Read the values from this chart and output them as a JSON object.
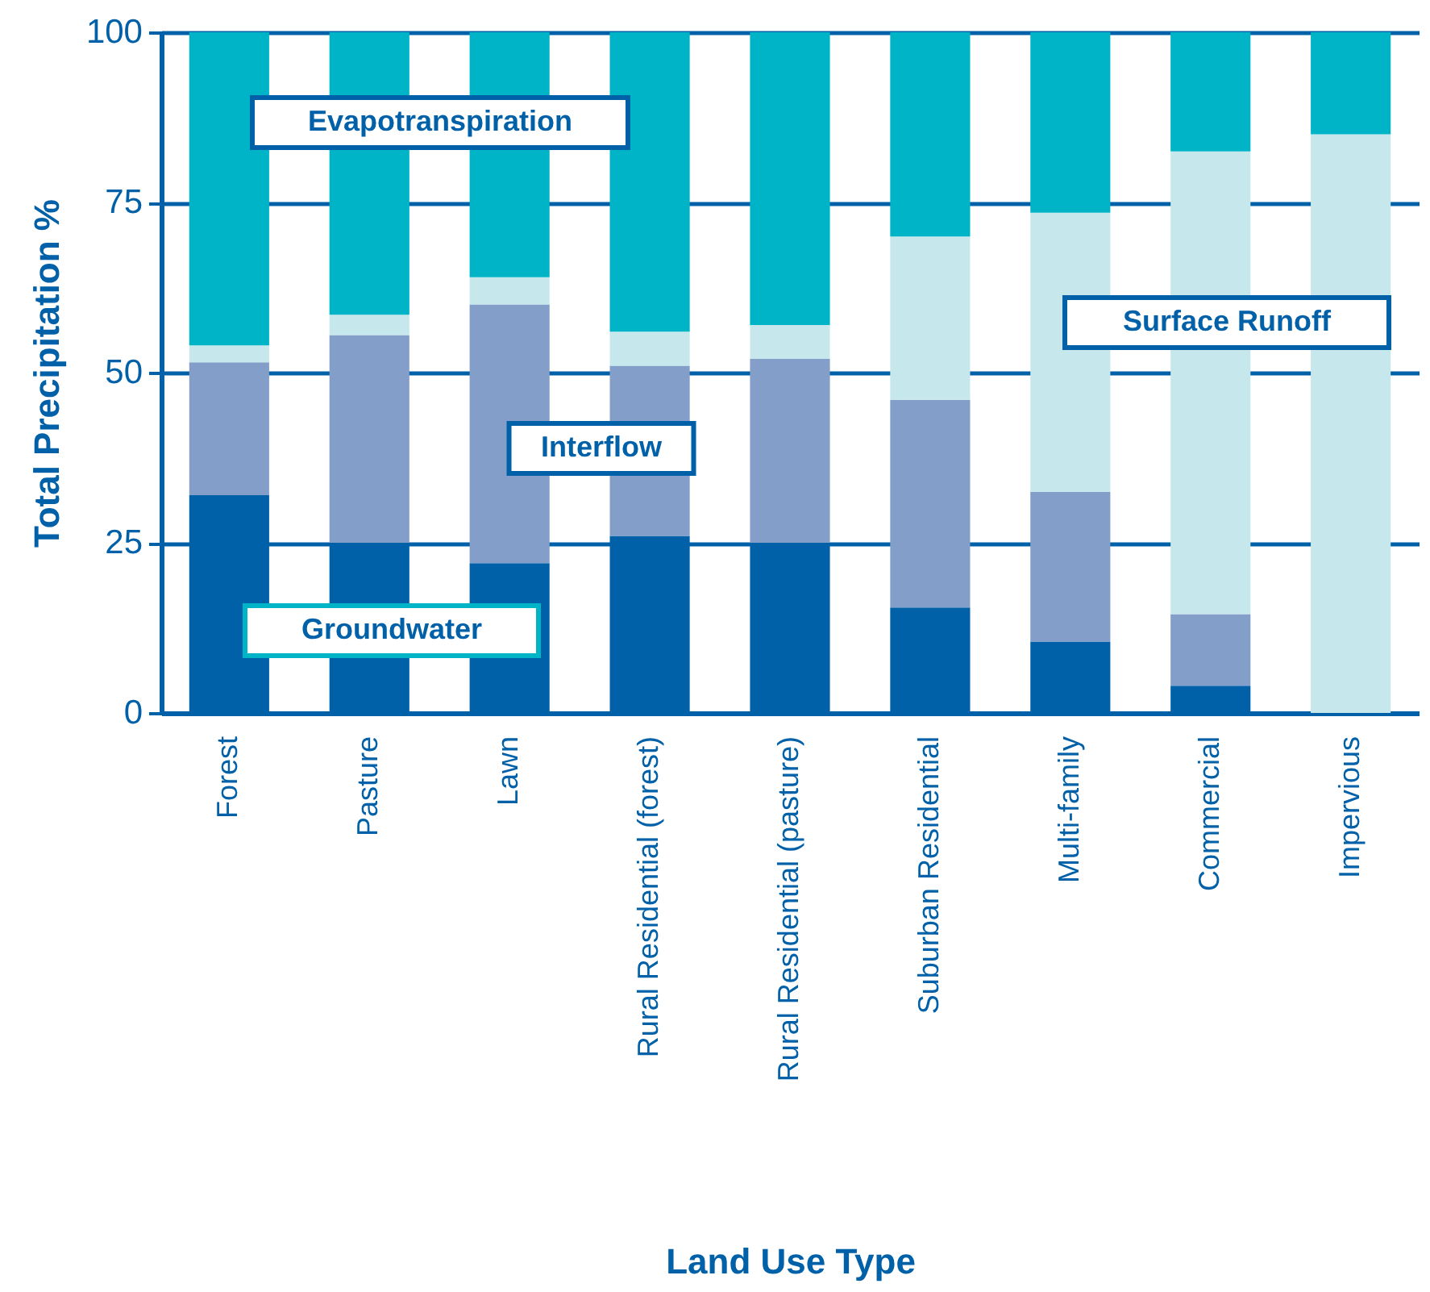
{
  "chart_data": {
    "type": "bar",
    "stacked": true,
    "xlabel": "Land Use Type",
    "ylabel": "Total Precipitation %",
    "categories": [
      "Forest",
      "Pasture",
      "Lawn",
      "Rural Residential (forest)",
      "Rural Residential (pasture)",
      "Suburban Residential",
      "Multi-family",
      "Commercial",
      "Impervious"
    ],
    "series": [
      {
        "name": "Groundwater",
        "color": "#0060a8",
        "values": [
          32,
          25,
          22,
          26,
          25,
          15.5,
          10.5,
          4,
          0
        ]
      },
      {
        "name": "Interflow",
        "color": "#829ec9",
        "values": [
          19.5,
          30.5,
          38,
          25,
          27,
          30.5,
          22,
          10.5,
          0
        ]
      },
      {
        "name": "Surface Runoff",
        "color": "#c6e8ec",
        "values": [
          2.5,
          3,
          4,
          5,
          5,
          24,
          41,
          68,
          85
        ]
      },
      {
        "name": "Evapotranspiration",
        "color": "#00b4c8",
        "values": [
          46,
          41.5,
          36,
          44,
          43,
          30,
          26.5,
          17.5,
          15
        ]
      }
    ],
    "ylim": [
      0,
      100
    ],
    "yticks": [
      0,
      25,
      50,
      75,
      100
    ],
    "grid": "y",
    "legend": false
  }
}
